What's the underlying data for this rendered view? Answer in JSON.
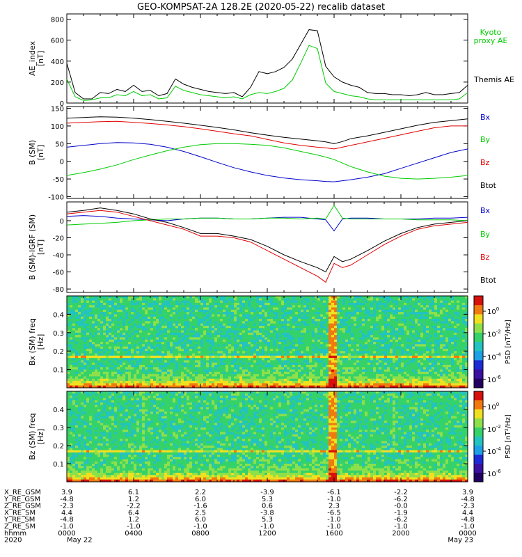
{
  "title": "GEO-KOMPSAT-2A 128.2E (2020-05-22) recalib dataset",
  "colors": {
    "black": "#000000",
    "red": "#e00000",
    "green": "#00cc00",
    "blue": "#0000cc"
  },
  "chart_data": [
    {
      "type": "line",
      "panel": "ae",
      "ylabel": "AE_index [nT]",
      "ylim": [
        0,
        850
      ],
      "yticks": [
        0,
        200,
        400,
        600,
        800
      ],
      "x_hours": [
        0,
        0.5,
        1,
        1.5,
        2,
        2.5,
        3,
        3.5,
        4,
        4.5,
        5,
        5.5,
        6,
        6.5,
        7,
        7.5,
        8,
        8.5,
        9,
        9.5,
        10,
        10.5,
        11,
        11.5,
        12,
        12.5,
        13,
        13.5,
        14,
        14.5,
        15,
        15.5,
        16,
        16.5,
        17,
        17.5,
        18,
        18.5,
        19,
        19.5,
        20,
        20.5,
        21,
        21.5,
        22,
        22.5,
        23,
        23.5,
        24
      ],
      "series": [
        {
          "name": "Themis AE",
          "color": "black",
          "values": [
            380,
            100,
            40,
            40,
            100,
            90,
            130,
            110,
            170,
            110,
            120,
            70,
            90,
            230,
            180,
            150,
            130,
            110,
            100,
            90,
            100,
            60,
            150,
            300,
            280,
            300,
            340,
            420,
            560,
            700,
            690,
            350,
            250,
            200,
            170,
            150,
            100,
            90,
            90,
            80,
            80,
            70,
            80,
            100,
            80,
            80,
            90,
            100,
            170
          ]
        },
        {
          "name": "Kyoto proxy AE",
          "color": "green",
          "values": [
            230,
            60,
            25,
            30,
            50,
            50,
            80,
            70,
            110,
            70,
            80,
            40,
            50,
            160,
            120,
            100,
            80,
            70,
            60,
            50,
            60,
            40,
            80,
            100,
            90,
            110,
            140,
            220,
            380,
            550,
            520,
            190,
            110,
            90,
            70,
            60,
            40,
            30,
            30,
            30,
            30,
            30,
            30,
            30,
            30,
            30,
            30,
            40,
            100
          ]
        }
      ]
    },
    {
      "type": "line",
      "panel": "bsm",
      "ylabel": "B (SM) [nT]",
      "ylim": [
        -105,
        155
      ],
      "yticks": [
        -100,
        -50,
        0,
        50,
        100,
        150
      ],
      "x_hours": [
        0,
        1,
        2,
        3,
        4,
        5,
        6,
        7,
        8,
        9,
        10,
        11,
        12,
        13,
        14,
        15,
        15.5,
        16,
        16.5,
        17,
        18,
        19,
        20,
        21,
        22,
        23,
        24
      ],
      "series": [
        {
          "name": "Bx",
          "color": "blue",
          "values": [
            40,
            45,
            50,
            53,
            52,
            48,
            40,
            28,
            13,
            -3,
            -18,
            -30,
            -40,
            -47,
            -52,
            -55,
            -57,
            -58,
            -55,
            -52,
            -45,
            -35,
            -20,
            -5,
            10,
            25,
            35
          ]
        },
        {
          "name": "By",
          "color": "green",
          "values": [
            -40,
            -32,
            -22,
            -10,
            5,
            18,
            30,
            40,
            47,
            50,
            50,
            48,
            45,
            38,
            28,
            18,
            12,
            5,
            -5,
            -15,
            -30,
            -42,
            -48,
            -50,
            -48,
            -45,
            -40
          ]
        },
        {
          "name": "Bz",
          "color": "red",
          "values": [
            108,
            110,
            112,
            113,
            110,
            107,
            103,
            98,
            92,
            85,
            78,
            72,
            62,
            52,
            45,
            40,
            38,
            35,
            40,
            45,
            55,
            65,
            75,
            85,
            95,
            100,
            100
          ]
        },
        {
          "name": "Btot",
          "color": "black",
          "values": [
            122,
            124,
            126,
            125,
            122,
            118,
            113,
            108,
            102,
            96,
            89,
            81,
            74,
            68,
            63,
            58,
            55,
            50,
            56,
            64,
            72,
            82,
            92,
            102,
            110,
            115,
            120
          ]
        }
      ]
    },
    {
      "type": "line",
      "panel": "bigrf",
      "ylabel": "B (SM)-IGRF (SM) [nT]",
      "ylim": [
        -84,
        22
      ],
      "yticks": [
        -80,
        -60,
        -40,
        -20,
        0
      ],
      "x_hours": [
        0,
        1,
        2,
        3,
        4,
        5,
        6,
        7,
        8,
        9,
        10,
        11,
        12,
        13,
        14,
        15,
        15.5,
        16,
        16.5,
        17,
        18,
        19,
        20,
        21,
        22,
        23,
        24
      ],
      "series": [
        {
          "name": "Bx",
          "color": "blue",
          "values": [
            5,
            6,
            5,
            3,
            2,
            1,
            0,
            2,
            3,
            3,
            2,
            2,
            3,
            4,
            4,
            2,
            1,
            -12,
            2,
            3,
            3,
            2,
            2,
            2,
            3,
            3,
            4
          ]
        },
        {
          "name": "By",
          "color": "green",
          "values": [
            -5,
            -4,
            -3,
            -2,
            0,
            1,
            2,
            2,
            3,
            3,
            2,
            2,
            3,
            3,
            2,
            3,
            2,
            18,
            3,
            2,
            2,
            2,
            2,
            1,
            1,
            1,
            0
          ]
        },
        {
          "name": "Bz",
          "color": "red",
          "values": [
            8,
            10,
            12,
            10,
            5,
            0,
            -5,
            -10,
            -18,
            -18,
            -20,
            -25,
            -35,
            -45,
            -55,
            -65,
            -72,
            -50,
            -55,
            -52,
            -40,
            -28,
            -18,
            -10,
            -6,
            -4,
            -2
          ]
        },
        {
          "name": "Btot",
          "color": "black",
          "values": [
            10,
            12,
            15,
            12,
            8,
            2,
            -2,
            -8,
            -15,
            -15,
            -18,
            -22,
            -30,
            -40,
            -48,
            -55,
            -60,
            -42,
            -48,
            -45,
            -35,
            -24,
            -15,
            -8,
            -4,
            -2,
            0
          ]
        }
      ]
    },
    {
      "type": "heatmap",
      "panel": "bx_spec",
      "ylabel": "Bx (SM) freq [Hz]",
      "ylim": [
        0,
        0.5
      ],
      "yticks": [
        0.1,
        0.2,
        0.3,
        0.4
      ],
      "colorbar_label": "PSD [nT²/Hz]",
      "colorbar_ticks": [
        "10^0",
        "10^-2",
        "10^-4",
        "10^-6"
      ]
    },
    {
      "type": "heatmap",
      "panel": "bz_spec",
      "ylabel": "Bz (SM) freq [Hz]",
      "ylim": [
        0,
        0.5
      ],
      "yticks": [
        0.1,
        0.2,
        0.3,
        0.4
      ],
      "colorbar_label": "PSD [nT²/Hz]",
      "colorbar_ticks": [
        "10^0",
        "10^-2",
        "10^-4",
        "10^-6"
      ]
    }
  ],
  "legends": {
    "ae": [
      {
        "text": "Kyoto",
        "color": "green"
      },
      {
        "text": "proxy AE",
        "color": "green"
      },
      {
        "text": "Themis AE",
        "color": "black"
      }
    ],
    "bsm": [
      {
        "text": "Bx",
        "color": "blue"
      },
      {
        "text": "By",
        "color": "green"
      },
      {
        "text": "Bz",
        "color": "red"
      },
      {
        "text": "Btot",
        "color": "black"
      }
    ],
    "bigrf": [
      {
        "text": "Bx",
        "color": "blue"
      },
      {
        "text": "By",
        "color": "green"
      },
      {
        "text": "Bz",
        "color": "red"
      },
      {
        "text": "Btot",
        "color": "black"
      }
    ]
  },
  "ephemeris": {
    "rows": [
      {
        "label": "X_RE_GSM",
        "values": [
          "3.9",
          "6.1",
          "2.2",
          "-3.9",
          "-6.1",
          "-2.2",
          "3.9"
        ]
      },
      {
        "label": "Y_RE_GSM",
        "values": [
          "-4.8",
          "1.2",
          "6.0",
          "5.3",
          "-1.0",
          "-6.2",
          "-4.8"
        ]
      },
      {
        "label": "Z_RE_GSM",
        "values": [
          "-2.3",
          "-2.2",
          "-1.6",
          "0.6",
          "2.3",
          "-0.0",
          "-2.3"
        ]
      },
      {
        "label": "X_RE_SM",
        "values": [
          "4.4",
          "6.4",
          "2.5",
          "-3.8",
          "-6.5",
          "-1.9",
          "4.4"
        ]
      },
      {
        "label": "Y_RE_SM",
        "values": [
          "-4.8",
          "1.2",
          "6.0",
          "5.3",
          "-1.0",
          "-6.2",
          "-4.8"
        ]
      },
      {
        "label": "Z_RE_SM",
        "values": [
          "-1.0",
          "-1.0",
          "-1.0",
          "-1.0",
          "-1.0",
          "-1.0",
          "-1.0"
        ]
      },
      {
        "label": "hhmm",
        "values": [
          "0000",
          "0400",
          "0800",
          "1200",
          "1600",
          "2000",
          "0000"
        ]
      }
    ],
    "year_label": "2020",
    "date_start": "May 22",
    "date_end": "May 23"
  }
}
